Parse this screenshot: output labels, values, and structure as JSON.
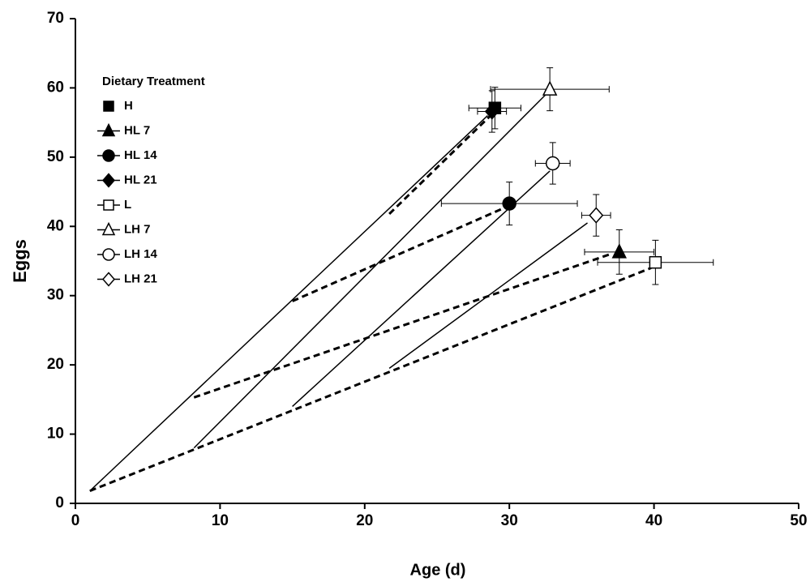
{
  "chart_data": {
    "type": "scatter",
    "x_label": "Age (d)",
    "y_label": "Eggs",
    "legend_title": "Dietary Treatment",
    "xlim": [
      0,
      50
    ],
    "ylim": [
      0,
      70
    ],
    "xticks": [
      0,
      10,
      20,
      30,
      40,
      50
    ],
    "yticks": [
      0,
      10,
      20,
      30,
      40,
      50,
      60,
      70
    ],
    "legend": "upper left",
    "color": "#000000",
    "series": [
      {
        "name": "H",
        "marker": "square",
        "filled": true,
        "x": [
          29.0
        ],
        "values": [
          57.1
        ],
        "xerr": [
          1.8
        ],
        "yerr": [
          3.0
        ]
      },
      {
        "name": "HL 7",
        "marker": "triangle",
        "filled": true,
        "x": [
          37.6
        ],
        "values": [
          36.3
        ],
        "xerr": [
          2.4
        ],
        "yerr": [
          3.2
        ]
      },
      {
        "name": "HL 14",
        "marker": "circle",
        "filled": true,
        "x": [
          30.0
        ],
        "values": [
          43.3
        ],
        "xerr": [
          4.7
        ],
        "yerr": [
          3.1
        ]
      },
      {
        "name": "HL 21",
        "marker": "diamond",
        "filled": true,
        "x": [
          28.8
        ],
        "values": [
          56.6
        ],
        "xerr": [
          1.0
        ],
        "yerr": [
          3.0
        ]
      },
      {
        "name": "L",
        "marker": "square",
        "filled": false,
        "x": [
          40.1
        ],
        "values": [
          34.8
        ],
        "xerr": [
          4.0
        ],
        "yerr": [
          3.2
        ]
      },
      {
        "name": "LH 7",
        "marker": "triangle",
        "filled": false,
        "x": [
          32.8
        ],
        "values": [
          59.8
        ],
        "xerr": [
          4.1
        ],
        "yerr": [
          3.1
        ]
      },
      {
        "name": "LH 14",
        "marker": "circle",
        "filled": false,
        "x": [
          33.0
        ],
        "values": [
          49.1
        ],
        "xerr": [
          1.2
        ],
        "yerr": [
          3.0
        ]
      },
      {
        "name": "LH 21",
        "marker": "diamond",
        "filled": false,
        "x": [
          36.0
        ],
        "values": [
          41.6
        ],
        "xerr": [
          1.0
        ],
        "yerr": [
          3.0
        ]
      }
    ],
    "fit_lines": [
      {
        "style": "solid",
        "x": [
          1.0,
          28.5
        ],
        "values": [
          1.8,
          56.0
        ]
      },
      {
        "style": "solid",
        "x": [
          8.2,
          32.5
        ],
        "values": [
          8.0,
          59.0
        ]
      },
      {
        "style": "solid",
        "x": [
          15.0,
          32.8
        ],
        "values": [
          14.0,
          48.0
        ]
      },
      {
        "style": "solid",
        "x": [
          21.7,
          35.4
        ],
        "values": [
          19.5,
          40.5
        ]
      },
      {
        "style": "dashed",
        "x": [
          1.0,
          39.8
        ],
        "values": [
          1.8,
          34.0
        ]
      },
      {
        "style": "dashed",
        "x": [
          8.2,
          37.0
        ],
        "values": [
          15.3,
          36.0
        ]
      },
      {
        "style": "dashed",
        "x": [
          15.0,
          30.0
        ],
        "values": [
          29.2,
          43.0
        ]
      },
      {
        "style": "dashed",
        "x": [
          21.7,
          28.7
        ],
        "values": [
          41.8,
          56.0
        ]
      }
    ]
  }
}
